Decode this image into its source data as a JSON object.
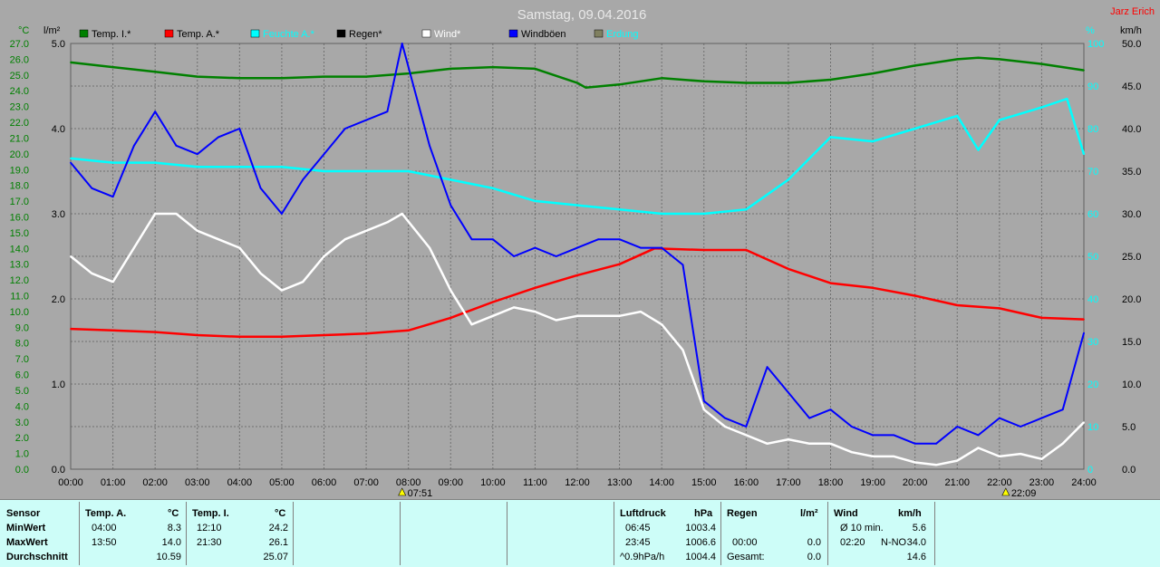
{
  "header": {
    "title": "Samstag, 09.04.2016",
    "author": "Jarz Erich"
  },
  "legend": [
    {
      "label": "Temp. I.*",
      "color": "#008000",
      "text_color": "#000000"
    },
    {
      "label": "Temp. A.*",
      "color": "#ff0000",
      "text_color": "#000000"
    },
    {
      "label": "Feuchte A.*",
      "color": "#00ffff",
      "text_color": "#00ffff"
    },
    {
      "label": "Regen*",
      "color": "#000000",
      "text_color": "#000000"
    },
    {
      "label": "Wind*",
      "color": "#ffffff",
      "text_color": "#ffffff"
    },
    {
      "label": "Windböen",
      "color": "#0000ff",
      "text_color": "#000000"
    },
    {
      "label": "Erdung",
      "color": "#808060",
      "text_color": "#00ffff"
    }
  ],
  "chart_data": {
    "type": "line",
    "title": "Samstag, 09.04.2016",
    "x_ticks": [
      "00:00",
      "01:00",
      "02:00",
      "03:00",
      "04:00",
      "05:00",
      "06:00",
      "07:00",
      "08:00",
      "09:00",
      "10:00",
      "11:00",
      "12:00",
      "13:00",
      "14:00",
      "15:00",
      "16:00",
      "17:00",
      "18:00",
      "19:00",
      "20:00",
      "21:00",
      "22:00",
      "23:00",
      "24:00"
    ],
    "x_range": [
      0,
      24
    ],
    "axes": {
      "temp": {
        "unit": "°C",
        "range": [
          0,
          27
        ],
        "ticks": [
          "0.0",
          "1.0",
          "2.0",
          "3.0",
          "4.0",
          "5.0",
          "6.0",
          "7.0",
          "8.0",
          "9.0",
          "10.0",
          "11.0",
          "12.0",
          "13.0",
          "14.0",
          "15.0",
          "16.0",
          "17.0",
          "18.0",
          "19.0",
          "20.0",
          "21.0",
          "22.0",
          "23.0",
          "24.0",
          "25.0",
          "26.0",
          "27.0"
        ]
      },
      "rain": {
        "unit": "l/m²",
        "range": [
          0,
          5
        ],
        "ticks": [
          "0.0",
          "1.0",
          "2.0",
          "3.0",
          "4.0",
          "5.0"
        ]
      },
      "humidity": {
        "unit": "%",
        "range": [
          0,
          100
        ],
        "ticks": [
          "0",
          "10",
          "20",
          "30",
          "40",
          "50",
          "60",
          "70",
          "80",
          "90",
          "100"
        ]
      },
      "wind": {
        "unit": "km/h",
        "range": [
          0,
          50
        ],
        "ticks": [
          "0.0",
          "5.0",
          "10.0",
          "15.0",
          "20.0",
          "25.0",
          "30.0",
          "35.0",
          "40.0",
          "45.0",
          "50.0"
        ]
      }
    },
    "grid": true,
    "markers": [
      {
        "label": "07:51",
        "x": 7.85
      },
      {
        "label": "22:09",
        "x": 22.15
      }
    ],
    "series": [
      {
        "name": "Temp. I.*",
        "axis": "temp",
        "color": "#008000",
        "x": [
          0,
          1,
          2,
          3,
          4,
          5,
          6,
          7,
          8,
          9,
          10,
          11,
          12,
          12.2,
          13,
          14,
          15,
          16,
          17,
          18,
          19,
          20,
          21,
          21.5,
          22,
          23,
          24
        ],
        "y": [
          25.8,
          25.5,
          25.2,
          24.9,
          24.8,
          24.8,
          24.9,
          24.9,
          25.1,
          25.4,
          25.5,
          25.4,
          24.5,
          24.2,
          24.4,
          24.8,
          24.6,
          24.5,
          24.5,
          24.7,
          25.1,
          25.6,
          26.0,
          26.1,
          26.0,
          25.7,
          25.3
        ]
      },
      {
        "name": "Temp. A.*",
        "axis": "temp",
        "color": "#ff0000",
        "x": [
          0,
          1,
          2,
          3,
          4,
          5,
          6,
          7,
          8,
          9,
          10,
          11,
          12,
          13,
          13.83,
          15,
          16,
          17,
          18,
          19,
          20,
          21,
          22,
          23,
          24
        ],
        "y": [
          8.9,
          8.8,
          8.7,
          8.5,
          8.4,
          8.4,
          8.5,
          8.6,
          8.8,
          9.6,
          10.6,
          11.5,
          12.3,
          13.0,
          14.0,
          13.9,
          13.9,
          12.7,
          11.8,
          11.5,
          11.0,
          10.4,
          10.2,
          9.6,
          9.5
        ]
      },
      {
        "name": "Feuchte A.*",
        "axis": "humidity",
        "color": "#00ffff",
        "x": [
          0,
          1,
          2,
          3,
          4,
          5,
          6,
          7,
          8,
          9,
          10,
          11,
          12,
          13,
          14,
          15,
          16,
          17,
          18,
          19,
          20,
          21,
          21.5,
          22,
          23,
          23.6,
          24
        ],
        "y": [
          73,
          72,
          72,
          71,
          71,
          71,
          70,
          70,
          70,
          68,
          66,
          63,
          62,
          61,
          60,
          60,
          61,
          68,
          78,
          77,
          80,
          83,
          75,
          82,
          85,
          87,
          74
        ]
      },
      {
        "name": "Wind*",
        "axis": "wind",
        "color": "#ffffff",
        "x": [
          0,
          0.5,
          1,
          1.5,
          2,
          2.5,
          3,
          3.5,
          4,
          4.5,
          5,
          5.5,
          6,
          6.5,
          7,
          7.5,
          7.85,
          8.5,
          9,
          9.5,
          10,
          10.5,
          11,
          11.5,
          12,
          12.5,
          13,
          13.5,
          14,
          14.5,
          15,
          15.5,
          16,
          16.5,
          17,
          17.5,
          18,
          18.5,
          19,
          19.5,
          20,
          20.5,
          21,
          21.5,
          22,
          22.5,
          23,
          23.5,
          24
        ],
        "y": [
          25.0,
          23.0,
          22.0,
          26.0,
          30.0,
          30.0,
          28.0,
          27.0,
          26.0,
          23.0,
          21.0,
          22.0,
          25.0,
          27.0,
          28.0,
          29.0,
          30.0,
          26.0,
          21.0,
          17.0,
          18.0,
          19.0,
          18.5,
          17.5,
          18.0,
          18.0,
          18.0,
          18.5,
          17.0,
          14.0,
          7.0,
          5.0,
          4.0,
          3.0,
          3.5,
          3.0,
          3.0,
          2.0,
          1.5,
          1.5,
          0.8,
          0.5,
          1.0,
          2.5,
          1.5,
          1.8,
          1.2,
          3.0,
          5.5
        ]
      },
      {
        "name": "Windböen",
        "axis": "wind",
        "color": "#0000ff",
        "x": [
          0,
          0.5,
          1,
          1.5,
          2,
          2.5,
          3,
          3.5,
          4,
          4.5,
          5,
          5.5,
          6,
          6.5,
          7,
          7.5,
          7.85,
          8.5,
          9,
          9.5,
          10,
          10.5,
          11,
          11.5,
          12,
          12.5,
          13,
          13.5,
          14,
          14.5,
          15,
          15.5,
          16,
          16.5,
          17,
          17.5,
          18,
          18.5,
          19,
          19.5,
          20,
          20.5,
          21,
          21.5,
          22,
          22.5,
          23,
          23.5,
          24
        ],
        "y": [
          36,
          33,
          32,
          38,
          42,
          38,
          37,
          39,
          40,
          33,
          30,
          34,
          37,
          40,
          41,
          42,
          50,
          38,
          31,
          27,
          27,
          25,
          26,
          25,
          26,
          27,
          27,
          26,
          26,
          24,
          8,
          6,
          5,
          12,
          9,
          6,
          7,
          5,
          4,
          4,
          3,
          3,
          5,
          4,
          6,
          5,
          6,
          7,
          16
        ]
      }
    ]
  },
  "stats": {
    "headers": {
      "sensor": "Sensor",
      "temp_a": "Temp. A.",
      "temp_a_unit": "°C",
      "temp_i": "Temp. I.",
      "temp_i_unit": "°C",
      "pressure": "Luftdruck",
      "pressure_unit": "hPa",
      "rain": "Regen",
      "rain_unit": "l/m²",
      "wind": "Wind",
      "wind_unit": "km/h"
    },
    "rows": [
      {
        "label": "MinWert",
        "temp_a_time": "04:00",
        "temp_a_val": "8.3",
        "temp_i_time": "12:10",
        "temp_i_val": "24.2",
        "pressure_time": "06:45",
        "pressure_val": "1003.4",
        "rain_time": "",
        "rain_val": "",
        "wind_time": "Ø 10 min.",
        "wind_dir": "",
        "wind_val": "5.6"
      },
      {
        "label": "MaxWert",
        "temp_a_time": "13:50",
        "temp_a_val": "14.0",
        "temp_i_time": "21:30",
        "temp_i_val": "26.1",
        "pressure_time": "23:45",
        "pressure_val": "1006.6",
        "rain_time": "00:00",
        "rain_val": "0.0",
        "wind_time": "02:20",
        "wind_dir": "N-NO",
        "wind_val": "34.0"
      },
      {
        "label": "Durchschnitt",
        "temp_a_time": "",
        "temp_a_val": "10.59",
        "temp_i_time": "",
        "temp_i_val": "25.07",
        "pressure_time": "^0.9hPa/h",
        "pressure_val": "1004.4",
        "rain_time": "Gesamt:",
        "rain_val": "0.0",
        "wind_time": "",
        "wind_dir": "",
        "wind_val": "14.6"
      }
    ]
  }
}
